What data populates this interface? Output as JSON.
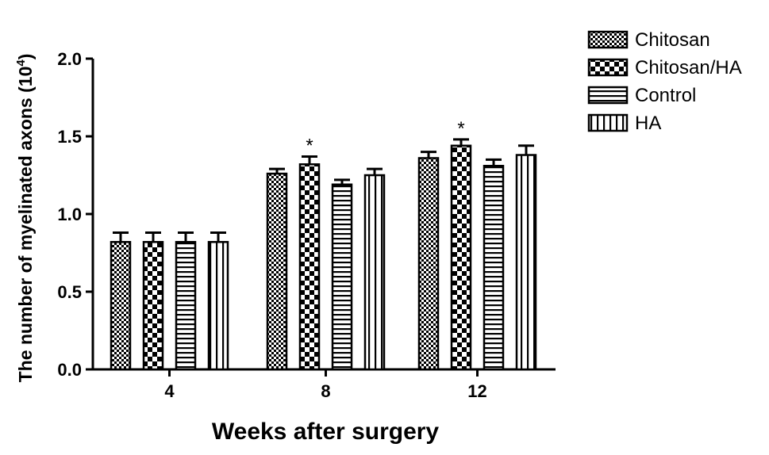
{
  "chart_data": {
    "type": "bar",
    "categories": [
      "4",
      "8",
      "12"
    ],
    "series": [
      {
        "name": "Chitosan",
        "values": [
          0.82,
          1.26,
          1.36
        ],
        "errors": [
          0.06,
          0.03,
          0.04
        ],
        "pattern": "checker-small"
      },
      {
        "name": "Chitosan/HA",
        "values": [
          0.82,
          1.32,
          1.44
        ],
        "errors": [
          0.06,
          0.05,
          0.04
        ],
        "pattern": "checker-large"
      },
      {
        "name": "Control",
        "values": [
          0.82,
          1.19,
          1.31
        ],
        "errors": [
          0.06,
          0.03,
          0.04
        ],
        "pattern": "horizontal-lines"
      },
      {
        "name": "HA",
        "values": [
          0.82,
          1.25,
          1.38
        ],
        "errors": [
          0.06,
          0.04,
          0.06
        ],
        "pattern": "vertical-lines"
      }
    ],
    "significance": [
      {
        "category": "8",
        "series": "Chitosan/HA",
        "label": "*"
      },
      {
        "category": "12",
        "series": "Chitosan/HA",
        "label": "*"
      }
    ],
    "xlabel": "Weeks after surgery",
    "ylabel": "The number of myelinated axons",
    "ylabel_unit_base": "10",
    "ylabel_unit_exp": "4",
    "ylim": [
      0,
      2.0
    ],
    "yticks": [
      "0.0",
      "0.5",
      "1.0",
      "1.5",
      "2.0"
    ],
    "grid": false,
    "legend_position": "top-right"
  }
}
